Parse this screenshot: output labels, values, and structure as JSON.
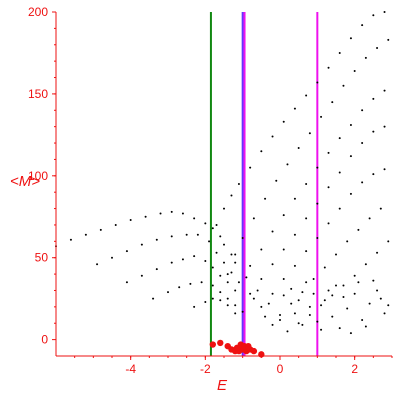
{
  "chart_data": {
    "type": "scatter",
    "title": "",
    "xlabel": "E",
    "ylabel": "<M>",
    "xlim": [
      -6.0,
      3.0
    ],
    "ylim": [
      -10,
      200
    ],
    "xticks": [
      -4,
      -2,
      0,
      2
    ],
    "yticks": [
      0,
      50,
      100,
      150,
      200
    ],
    "grid": false,
    "colors": {
      "axis": "#ee1111",
      "points": "#000000",
      "red_points": "#ee1111",
      "green_line": "#118811",
      "blue_line": "#6633ff",
      "magenta_line": "#ee11ee"
    },
    "vertical_lines": [
      {
        "x": -1.85,
        "color": "#118811"
      },
      {
        "x": -1.0,
        "color": "#6633ff"
      },
      {
        "x": -0.95,
        "color": "#ee11ee"
      },
      {
        "x": 1.0,
        "color": "#ee11ee"
      }
    ],
    "series": [
      {
        "color": "#000000",
        "points": [
          [
            -6.0,
            57
          ],
          [
            -5.6,
            61
          ],
          [
            -5.2,
            64
          ],
          [
            -4.8,
            67
          ],
          [
            -4.4,
            70
          ],
          [
            -4.0,
            73
          ],
          [
            -3.6,
            75
          ],
          [
            -3.2,
            77
          ],
          [
            -2.9,
            78
          ],
          [
            -2.6,
            77
          ],
          [
            -2.3,
            74
          ],
          [
            -2.0,
            71
          ],
          [
            -1.8,
            68
          ],
          [
            -1.6,
            63
          ],
          [
            -1.5,
            58
          ],
          [
            -1.3,
            52
          ],
          [
            -1.2,
            47
          ],
          [
            -4.9,
            46
          ],
          [
            -4.5,
            50
          ],
          [
            -4.1,
            54
          ],
          [
            -3.7,
            58
          ],
          [
            -3.3,
            61
          ],
          [
            -2.9,
            63
          ],
          [
            -2.5,
            64
          ],
          [
            -2.2,
            64
          ],
          [
            -1.9,
            60
          ],
          [
            -1.7,
            53
          ],
          [
            -1.5,
            47
          ],
          [
            -1.3,
            41
          ],
          [
            -4.1,
            35
          ],
          [
            -3.7,
            39
          ],
          [
            -3.3,
            43
          ],
          [
            -2.9,
            47
          ],
          [
            -2.6,
            49
          ],
          [
            -2.3,
            51
          ],
          [
            -2.0,
            48
          ],
          [
            -1.8,
            44
          ],
          [
            -1.6,
            39
          ],
          [
            -1.4,
            35
          ],
          [
            -1.2,
            30
          ],
          [
            -3.4,
            25
          ],
          [
            -3.0,
            29
          ],
          [
            -2.7,
            32
          ],
          [
            -2.4,
            34
          ],
          [
            -2.1,
            35
          ],
          [
            -1.8,
            33
          ],
          [
            -1.6,
            29
          ],
          [
            -1.4,
            25
          ],
          [
            -1.2,
            21
          ],
          [
            -1.0,
            17
          ],
          [
            -2.3,
            20
          ],
          [
            -2.0,
            23
          ],
          [
            -1.8,
            25
          ],
          [
            -1.6,
            24
          ],
          [
            -1.4,
            21
          ],
          [
            -1.2,
            16
          ],
          [
            -1.7,
            70
          ],
          [
            -1.5,
            80
          ],
          [
            -1.3,
            88
          ],
          [
            -1.1,
            95
          ],
          [
            -0.8,
            105
          ],
          [
            -0.5,
            115
          ],
          [
            -0.2,
            124
          ],
          [
            0.1,
            133
          ],
          [
            0.4,
            141
          ],
          [
            0.7,
            149
          ],
          [
            1.0,
            157
          ],
          [
            1.3,
            166
          ],
          [
            1.6,
            175
          ],
          [
            1.9,
            184
          ],
          [
            2.2,
            192
          ],
          [
            2.5,
            198
          ],
          [
            2.8,
            200
          ],
          [
            -1.4,
            40
          ],
          [
            -1.2,
            52
          ],
          [
            -1.0,
            62
          ],
          [
            -0.7,
            74
          ],
          [
            -0.4,
            86
          ],
          [
            -0.1,
            97
          ],
          [
            0.2,
            107
          ],
          [
            0.5,
            117
          ],
          [
            0.8,
            126
          ],
          [
            1.1,
            136
          ],
          [
            1.4,
            145
          ],
          [
            1.7,
            155
          ],
          [
            2.0,
            164
          ],
          [
            2.3,
            172
          ],
          [
            2.6,
            178
          ],
          [
            2.9,
            183
          ],
          [
            -1.1,
            35
          ],
          [
            -0.8,
            45
          ],
          [
            -0.5,
            55
          ],
          [
            -0.2,
            66
          ],
          [
            0.1,
            76
          ],
          [
            0.4,
            86
          ],
          [
            0.7,
            95
          ],
          [
            1.0,
            105
          ],
          [
            1.3,
            114
          ],
          [
            1.6,
            123
          ],
          [
            1.9,
            131
          ],
          [
            2.2,
            140
          ],
          [
            2.5,
            147
          ],
          [
            2.8,
            152
          ],
          [
            -0.8,
            28
          ],
          [
            -0.5,
            37
          ],
          [
            -0.2,
            46
          ],
          [
            0.1,
            55
          ],
          [
            0.4,
            64
          ],
          [
            0.7,
            74
          ],
          [
            1.0,
            83
          ],
          [
            1.3,
            93
          ],
          [
            1.6,
            102
          ],
          [
            1.9,
            112
          ],
          [
            2.2,
            120
          ],
          [
            2.5,
            127
          ],
          [
            2.8,
            130
          ],
          [
            -0.5,
            20
          ],
          [
            -0.2,
            28
          ],
          [
            0.1,
            37
          ],
          [
            0.4,
            45
          ],
          [
            0.7,
            54
          ],
          [
            1.0,
            62
          ],
          [
            1.3,
            71
          ],
          [
            1.6,
            80
          ],
          [
            1.9,
            89
          ],
          [
            2.2,
            96
          ],
          [
            2.5,
            101
          ],
          [
            2.8,
            104
          ],
          [
            0.0,
            15
          ],
          [
            0.3,
            22
          ],
          [
            0.6,
            29
          ],
          [
            0.9,
            37
          ],
          [
            1.2,
            44
          ],
          [
            1.5,
            52
          ],
          [
            1.8,
            60
          ],
          [
            2.1,
            67
          ],
          [
            2.4,
            74
          ],
          [
            2.7,
            80
          ],
          [
            0.5,
            10
          ],
          [
            0.8,
            15
          ],
          [
            1.1,
            21
          ],
          [
            1.4,
            27
          ],
          [
            1.7,
            33
          ],
          [
            2.0,
            39
          ],
          [
            2.3,
            46
          ],
          [
            2.6,
            53
          ],
          [
            2.9,
            60
          ],
          [
            -0.6,
            30
          ],
          [
            -0.3,
            22
          ],
          [
            0.0,
            12
          ],
          [
            0.2,
            5
          ],
          [
            0.4,
            16
          ],
          [
            0.6,
            9
          ],
          [
            0.8,
            20
          ],
          [
            1.0,
            11
          ],
          [
            1.2,
            24
          ],
          [
            1.4,
            14
          ],
          [
            1.6,
            7
          ],
          [
            1.8,
            19
          ],
          [
            2.0,
            28
          ],
          [
            2.2,
            12
          ],
          [
            2.4,
            22
          ],
          [
            2.6,
            30
          ],
          [
            2.8,
            16
          ],
          [
            0.3,
            31
          ],
          [
            0.9,
            28
          ],
          [
            1.5,
            33
          ],
          [
            2.1,
            35
          ],
          [
            2.7,
            25
          ],
          [
            -0.2,
            9
          ],
          [
            0.5,
            24
          ],
          [
            1.1,
            6
          ],
          [
            1.7,
            26
          ],
          [
            2.3,
            8
          ],
          [
            2.9,
            21
          ],
          [
            0.7,
            35
          ],
          [
            1.9,
            4
          ],
          [
            -0.9,
            38
          ],
          [
            -0.7,
            25
          ],
          [
            -0.4,
            14
          ],
          [
            0.1,
            27
          ],
          [
            1.3,
            30
          ],
          [
            2.5,
            36
          ]
        ]
      },
      {
        "color": "#ee1111",
        "points": [
          [
            -1.4,
            -4
          ],
          [
            -1.3,
            -6
          ],
          [
            -1.2,
            -7
          ],
          [
            -1.1,
            -7
          ],
          [
            -1.0,
            -6
          ],
          [
            -0.9,
            -7
          ],
          [
            -0.8,
            -6
          ],
          [
            -0.7,
            -7
          ],
          [
            -1.05,
            -3
          ],
          [
            -0.95,
            -4
          ],
          [
            -1.15,
            -5
          ],
          [
            -0.85,
            -4
          ],
          [
            -0.5,
            -9
          ],
          [
            -1.6,
            -2
          ],
          [
            -1.8,
            -3
          ]
        ]
      }
    ]
  }
}
